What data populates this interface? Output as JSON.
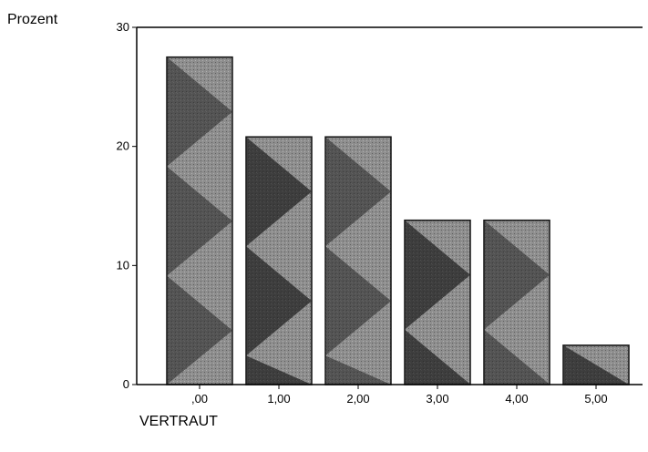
{
  "chart_data": {
    "type": "bar",
    "xlabel": "VERTRAUT",
    "ylabel": "Prozent",
    "categories": [
      ",00",
      "1,00",
      "2,00",
      "3,00",
      "4,00",
      "5,00"
    ],
    "values": [
      27.5,
      20.8,
      20.8,
      13.8,
      13.8,
      3.3
    ],
    "ylim": [
      0,
      30
    ],
    "yticks": [
      "0",
      "10",
      "20",
      "30"
    ],
    "grid": false,
    "legend": "none",
    "colors": {
      "bar_light": "#8e8e8e",
      "bar_dark": "#1e1e1e",
      "axis": "#000000"
    }
  }
}
